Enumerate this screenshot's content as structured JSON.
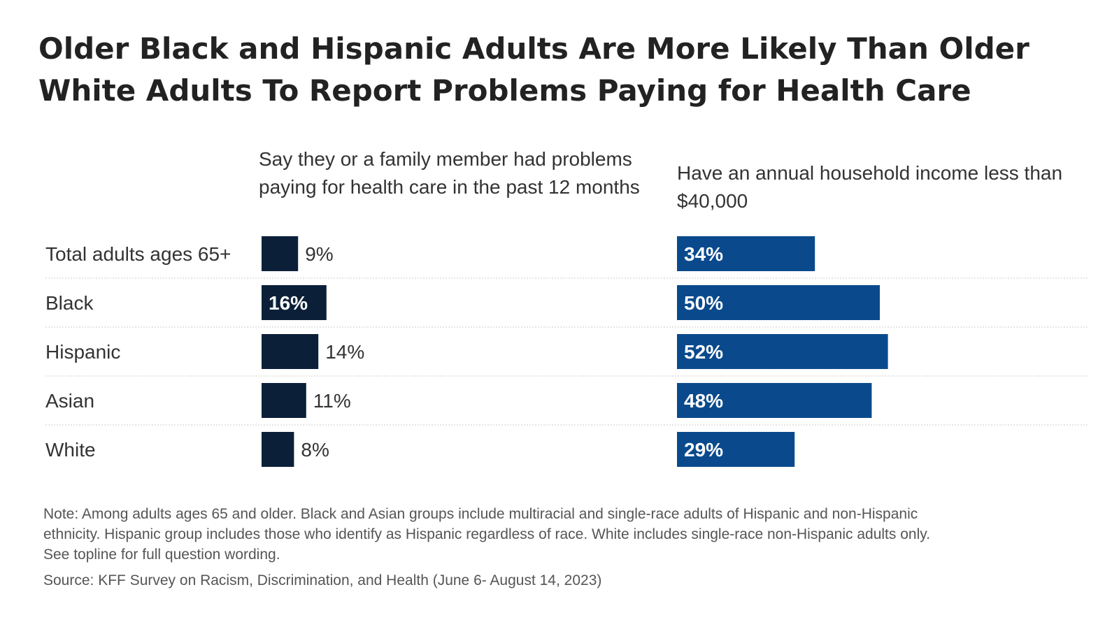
{
  "title": "Older Black and Hispanic Adults Are More Likely Than Older White Adults To Report Problems Paying for Health Care",
  "colors": {
    "series1": "#0b2038",
    "series2": "#0a4a8c",
    "separator": "#cccccc",
    "text": "#333333"
  },
  "chart_data": {
    "type": "bar",
    "orientation": "horizontal",
    "categories": [
      "Total adults ages 65+",
      "Black",
      "Hispanic",
      "Asian",
      "White"
    ],
    "series": [
      {
        "name": "Say they or a family member had problems paying for health care in the past 12 months",
        "values": [
          9,
          16,
          14,
          11,
          8
        ],
        "labels": [
          "9%",
          "16%",
          "14%",
          "11%",
          "8%"
        ]
      },
      {
        "name": "Have an annual household income less than $40,000",
        "values": [
          34,
          50,
          52,
          48,
          29
        ],
        "labels": [
          "34%",
          "50%",
          "52%",
          "48%",
          "29%"
        ]
      }
    ],
    "unit": "%",
    "grid": false,
    "legend": "column headers above each panel"
  },
  "note": "Note: Among adults ages 65 and older. Black and Asian groups include multiracial and single-race adults of Hispanic and non-Hispanic ethnicity. Hispanic group includes those who identify as Hispanic regardless of race. White includes single-race non-Hispanic adults only. See topline for full question wording.",
  "source": "Source: KFF Survey on Racism, Discrimination, and Health (June 6- August 14, 2023)"
}
